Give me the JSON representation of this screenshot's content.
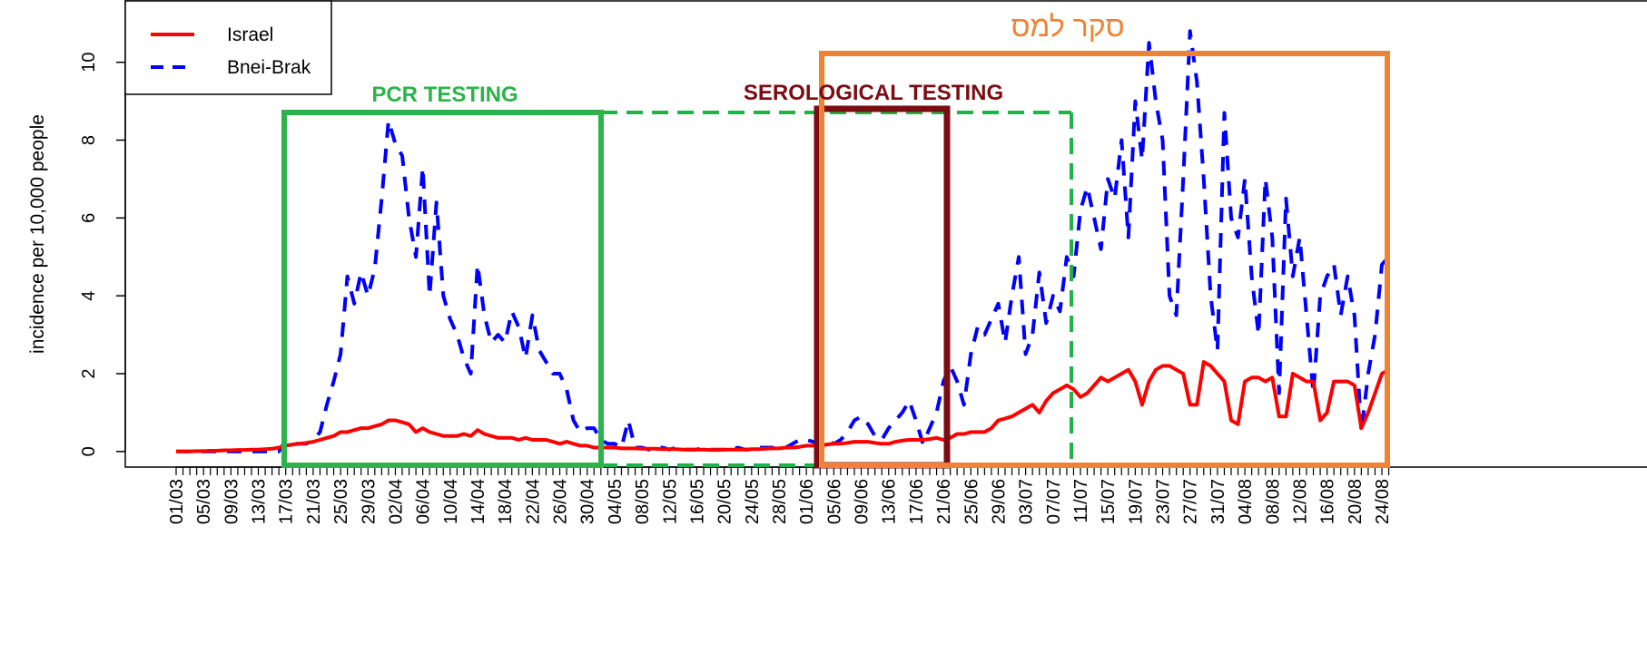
{
  "chart_data": {
    "type": "line",
    "y_label": "incidence per 10,000 people",
    "categories": [
      "01/03",
      null,
      null,
      null,
      "05/03",
      null,
      null,
      null,
      "09/03",
      null,
      null,
      null,
      "13/03",
      null,
      null,
      null,
      "17/03",
      null,
      null,
      null,
      "21/03",
      null,
      null,
      null,
      "25/03",
      null,
      null,
      null,
      "29/03",
      null,
      null,
      null,
      "02/04",
      null,
      null,
      null,
      "06/04",
      null,
      null,
      null,
      "10/04",
      null,
      null,
      null,
      "14/04",
      null,
      null,
      null,
      "18/04",
      null,
      null,
      null,
      "22/04",
      null,
      null,
      null,
      "26/04",
      null,
      null,
      null,
      "30/04",
      null,
      null,
      null,
      "04/05",
      null,
      null,
      null,
      "08/05",
      null,
      null,
      null,
      "12/05",
      null,
      null,
      null,
      "16/05",
      null,
      null,
      null,
      "20/05",
      null,
      null,
      null,
      "24/05",
      null,
      null,
      null,
      "28/05",
      null,
      null,
      null,
      "01/06",
      null,
      null,
      null,
      "05/06",
      null,
      null,
      null,
      "09/06",
      null,
      null,
      null,
      "13/06",
      null,
      null,
      null,
      "17/06",
      null,
      null,
      null,
      "21/06",
      null,
      null,
      null,
      "25/06",
      null,
      null,
      null,
      "29/06",
      null,
      null,
      null,
      "03/07",
      null,
      null,
      null,
      "07/07",
      null,
      null,
      null,
      "11/07",
      null,
      null,
      null,
      "15/07",
      null,
      null,
      null,
      "19/07",
      null,
      null,
      null,
      "23/07",
      null,
      null,
      null,
      "27/07",
      null,
      null,
      null,
      "31/07",
      null,
      null,
      null,
      "04/08",
      null,
      null,
      null,
      "08/08",
      null,
      null,
      null,
      "12/08",
      null,
      null,
      null,
      "16/08",
      null,
      null,
      null,
      "20/08",
      null,
      null,
      null,
      "24/08",
      null
    ],
    "series": [
      {
        "name": "Israel",
        "color": "#ff0000",
        "dash": false,
        "values": [
          0,
          0,
          0,
          0.01,
          0.01,
          0.02,
          0.02,
          0.03,
          0.03,
          0.04,
          0.04,
          0.05,
          0.05,
          0.06,
          0.07,
          0.1,
          0.15,
          0.18,
          0.2,
          0.22,
          0.25,
          0.3,
          0.35,
          0.4,
          0.5,
          0.5,
          0.55,
          0.6,
          0.6,
          0.65,
          0.7,
          0.8,
          0.8,
          0.75,
          0.7,
          0.5,
          0.6,
          0.5,
          0.45,
          0.4,
          0.4,
          0.4,
          0.45,
          0.4,
          0.55,
          0.45,
          0.4,
          0.35,
          0.35,
          0.35,
          0.3,
          0.35,
          0.3,
          0.3,
          0.3,
          0.25,
          0.2,
          0.25,
          0.2,
          0.15,
          0.15,
          0.1,
          0.1,
          0.1,
          0.1,
          0.08,
          0.08,
          0.08,
          0.07,
          0.07,
          0.07,
          0.06,
          0.06,
          0.06,
          0.05,
          0.05,
          0.05,
          0.05,
          0.04,
          0.04,
          0.05,
          0.05,
          0.05,
          0.05,
          0.06,
          0.06,
          0.07,
          0.08,
          0.08,
          0.1,
          0.1,
          0.12,
          0.15,
          0.15,
          0.15,
          0.18,
          0.2,
          0.2,
          0.22,
          0.25,
          0.25,
          0.25,
          0.22,
          0.2,
          0.2,
          0.25,
          0.28,
          0.3,
          0.3,
          0.3,
          0.32,
          0.35,
          0.3,
          0.35,
          0.45,
          0.45,
          0.5,
          0.5,
          0.5,
          0.6,
          0.8,
          0.85,
          0.9,
          1.0,
          1.1,
          1.2,
          1.0,
          1.3,
          1.5,
          1.6,
          1.7,
          1.6,
          1.4,
          1.5,
          1.7,
          1.9,
          1.8,
          1.9,
          2.0,
          2.1,
          1.8,
          1.2,
          1.8,
          2.1,
          2.2,
          2.2,
          2.1,
          2.0,
          1.2,
          1.2,
          2.3,
          2.2,
          2.0,
          1.8,
          0.8,
          0.7,
          1.8,
          1.9,
          1.9,
          1.8,
          1.9,
          0.9,
          0.9,
          2.0,
          1.9,
          1.8,
          1.8,
          0.8,
          1.0,
          1.8,
          1.8,
          1.8,
          1.7,
          0.6,
          1.0,
          1.5,
          2.0,
          2.1
        ]
      },
      {
        "name": "Bnei-Brak",
        "color": "#0000ff",
        "dash": true,
        "values": [
          0,
          0,
          0,
          0,
          0,
          0,
          0,
          0,
          0,
          0,
          0,
          0,
          0,
          0,
          0,
          0,
          0.3,
          0.2,
          0.2,
          0.2,
          0.3,
          0.5,
          1.2,
          1.8,
          2.5,
          4.5,
          3.8,
          4.6,
          4.0,
          4.7,
          6.5,
          8.5,
          7.9,
          7.6,
          6.0,
          5.0,
          7.3,
          4.0,
          6.4,
          4.0,
          3.4,
          3.0,
          2.4,
          2.0,
          4.8,
          3.5,
          2.8,
          3.0,
          2.8,
          3.6,
          3.2,
          2.4,
          3.5,
          2.6,
          2.3,
          2.0,
          2.0,
          1.6,
          0.8,
          0.5,
          0.6,
          0.6,
          0.3,
          0.2,
          0.2,
          0.1,
          0.8,
          0.1,
          0.1,
          0.05,
          0.1,
          0.1,
          0.05,
          0.1,
          0.05,
          0.05,
          0.05,
          0.1,
          0.05,
          0.05,
          0.05,
          0.05,
          0.1,
          0.05,
          0.05,
          0.1,
          0.1,
          0.1,
          0.05,
          0.1,
          0.2,
          0.3,
          0.3,
          0.25,
          0.2,
          0.3,
          0.2,
          0.3,
          0.5,
          0.8,
          0.9,
          0.7,
          0.4,
          0.3,
          0.6,
          0.8,
          1.0,
          1.3,
          0.8,
          0.2,
          0.6,
          1.0,
          1.8,
          2.2,
          1.8,
          1.2,
          2.5,
          3.2,
          3.0,
          3.4,
          3.8,
          2.8,
          4.0,
          5.0,
          2.5,
          3.0,
          4.6,
          3.3,
          4.0,
          3.6,
          5.0,
          4.5,
          6.2,
          6.8,
          6.0,
          5.2,
          7.0,
          6.5,
          8.0,
          5.5,
          9.0,
          7.5,
          10.5,
          9.0,
          8.0,
          4.0,
          3.5,
          7.0,
          10.8,
          9.5,
          7.0,
          4.0,
          2.6,
          8.7,
          6.0,
          5.5,
          7.0,
          4.5,
          3.0,
          7.0,
          5.5,
          1.5,
          6.5,
          4.5,
          5.5,
          3.5,
          1.5,
          4.0,
          4.5,
          4.8,
          3.5,
          4.5,
          3.5,
          0.5,
          2.0,
          3.0,
          4.8,
          5.0
        ]
      }
    ],
    "ylim": [
      -0.4,
      11.6
    ],
    "yticks": [
      0,
      2,
      4,
      6,
      8,
      10
    ],
    "legend": "top-left",
    "annotations": [
      "PCR TESTING",
      "SEROLOGICAL TESTING",
      "סקר למס"
    ]
  }
}
